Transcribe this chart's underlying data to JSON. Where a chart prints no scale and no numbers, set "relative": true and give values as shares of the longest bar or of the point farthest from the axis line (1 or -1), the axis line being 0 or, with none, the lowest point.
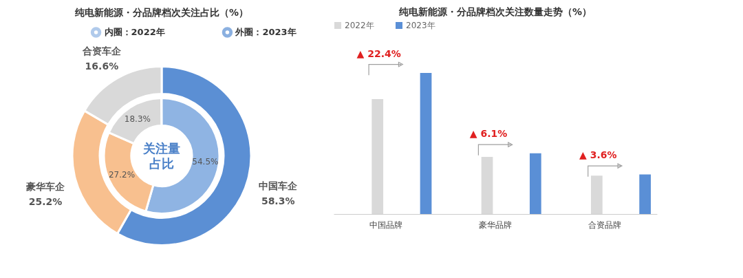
{
  "chart_data": [
    {
      "type": "donut",
      "title": "纯电新能源・分品牌档次关注占比（%）",
      "categories": [
        "中国车企",
        "豪华车企",
        "合资车企"
      ],
      "series": [
        {
          "name": "内圈：2022年",
          "colors": [
            "#8fb4e3",
            "#f8c08f",
            "#d9d9d9"
          ],
          "values": [
            54.5,
            27.2,
            18.3
          ],
          "value_labels": [
            "54.5%",
            "27.2%",
            "18.3%"
          ]
        },
        {
          "name": "外圈：2023年",
          "colors": [
            "#5b8fd4",
            "#f8c08f",
            "#d9d9d9"
          ],
          "values": [
            58.3,
            25.2,
            16.6
          ],
          "value_labels": [
            "58.3%",
            "25.2%",
            "16.6%"
          ]
        }
      ],
      "legend": "top",
      "annotations": [
        "关注量占比"
      ]
    },
    {
      "type": "bar",
      "title": "纯电新能源・分品牌档次关注数量走势（%）",
      "categories": [
        "中国品牌",
        "豪华品牌",
        "合资品牌"
      ],
      "series": [
        {
          "name": "2022年",
          "color": "#d9d9d9",
          "values": [
            0.815,
            0.405,
            0.272
          ]
        },
        {
          "name": "2023年",
          "color": "#5a8fd6",
          "values": [
            1,
            0.431,
            0.28
          ]
        }
      ],
      "relative": true,
      "legend": "top",
      "annotations": [
        "▲ 22.4%",
        "▲ 6.1%",
        "▲ 3.6%"
      ]
    }
  ]
}
